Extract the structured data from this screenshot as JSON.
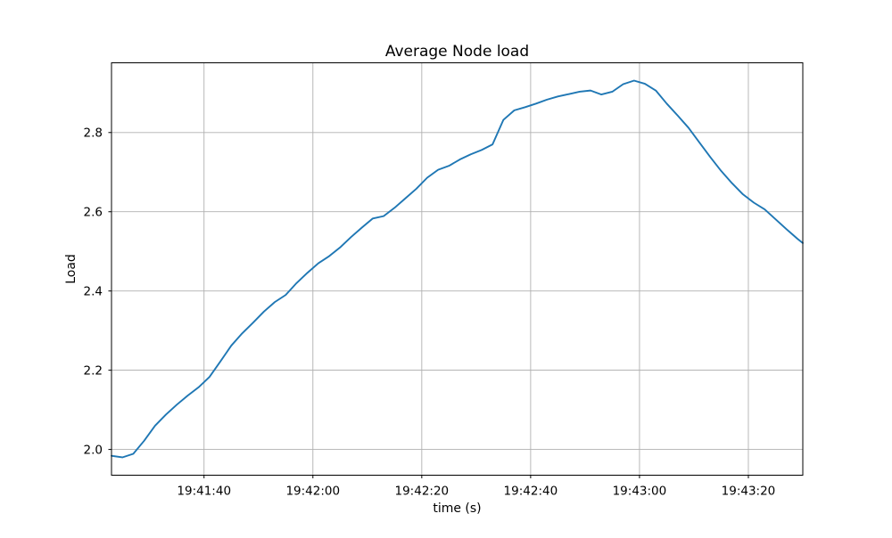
{
  "figure": {
    "background": "#ffffff",
    "frame_color": "#000000",
    "text_color": "#000000"
  },
  "chart_data": {
    "type": "line",
    "title": "Average Node load",
    "xlabel": "time (s)",
    "ylabel": "Load",
    "legend": "none",
    "grid": true,
    "grid_color": "#b0b0b0",
    "line_color": "#1f77b4",
    "line_width": 1.9,
    "xlim": [
      "19:41:23",
      "19:43:30"
    ],
    "ylim": [
      1.935,
      2.976
    ],
    "x_ticks": [
      "19:41:40",
      "19:42:00",
      "19:42:20",
      "19:42:40",
      "19:43:00",
      "19:43:20"
    ],
    "y_ticks": [
      2.0,
      2.2,
      2.4,
      2.6,
      2.8
    ],
    "series": [
      {
        "name": "average-node-load",
        "x": [
          "19:41:23",
          "19:41:25",
          "19:41:27",
          "19:41:29",
          "19:41:31",
          "19:41:33",
          "19:41:35",
          "19:41:37",
          "19:41:39",
          "19:41:41",
          "19:41:43",
          "19:41:45",
          "19:41:47",
          "19:41:49",
          "19:41:51",
          "19:41:53",
          "19:41:55",
          "19:41:57",
          "19:41:59",
          "19:42:01",
          "19:42:03",
          "19:42:05",
          "19:42:07",
          "19:42:09",
          "19:42:11",
          "19:42:13",
          "19:42:15",
          "19:42:17",
          "19:42:19",
          "19:42:21",
          "19:42:23",
          "19:42:25",
          "19:42:27",
          "19:42:29",
          "19:42:31",
          "19:42:33",
          "19:42:35",
          "19:42:37",
          "19:42:39",
          "19:42:41",
          "19:42:43",
          "19:42:45",
          "19:42:47",
          "19:42:49",
          "19:42:51",
          "19:42:53",
          "19:42:55",
          "19:42:57",
          "19:42:59",
          "19:43:01",
          "19:43:03",
          "19:43:05",
          "19:43:07",
          "19:43:09",
          "19:43:11",
          "19:43:13",
          "19:43:15",
          "19:43:17",
          "19:43:19",
          "19:43:21",
          "19:43:23",
          "19:43:25",
          "19:43:27",
          "19:43:29",
          "19:43:30"
        ],
        "y": [
          1.984,
          1.98,
          1.989,
          2.022,
          2.06,
          2.088,
          2.113,
          2.136,
          2.157,
          2.183,
          2.222,
          2.262,
          2.293,
          2.32,
          2.348,
          2.372,
          2.39,
          2.42,
          2.446,
          2.47,
          2.488,
          2.51,
          2.536,
          2.56,
          2.583,
          2.589,
          2.61,
          2.634,
          2.658,
          2.686,
          2.706,
          2.716,
          2.732,
          2.745,
          2.756,
          2.77,
          2.832,
          2.856,
          2.864,
          2.873,
          2.883,
          2.891,
          2.897,
          2.903,
          2.906,
          2.896,
          2.903,
          2.922,
          2.931,
          2.923,
          2.906,
          2.873,
          2.843,
          2.812,
          2.775,
          2.738,
          2.703,
          2.672,
          2.644,
          2.623,
          2.606,
          2.581,
          2.556,
          2.532,
          2.521
        ]
      }
    ]
  }
}
